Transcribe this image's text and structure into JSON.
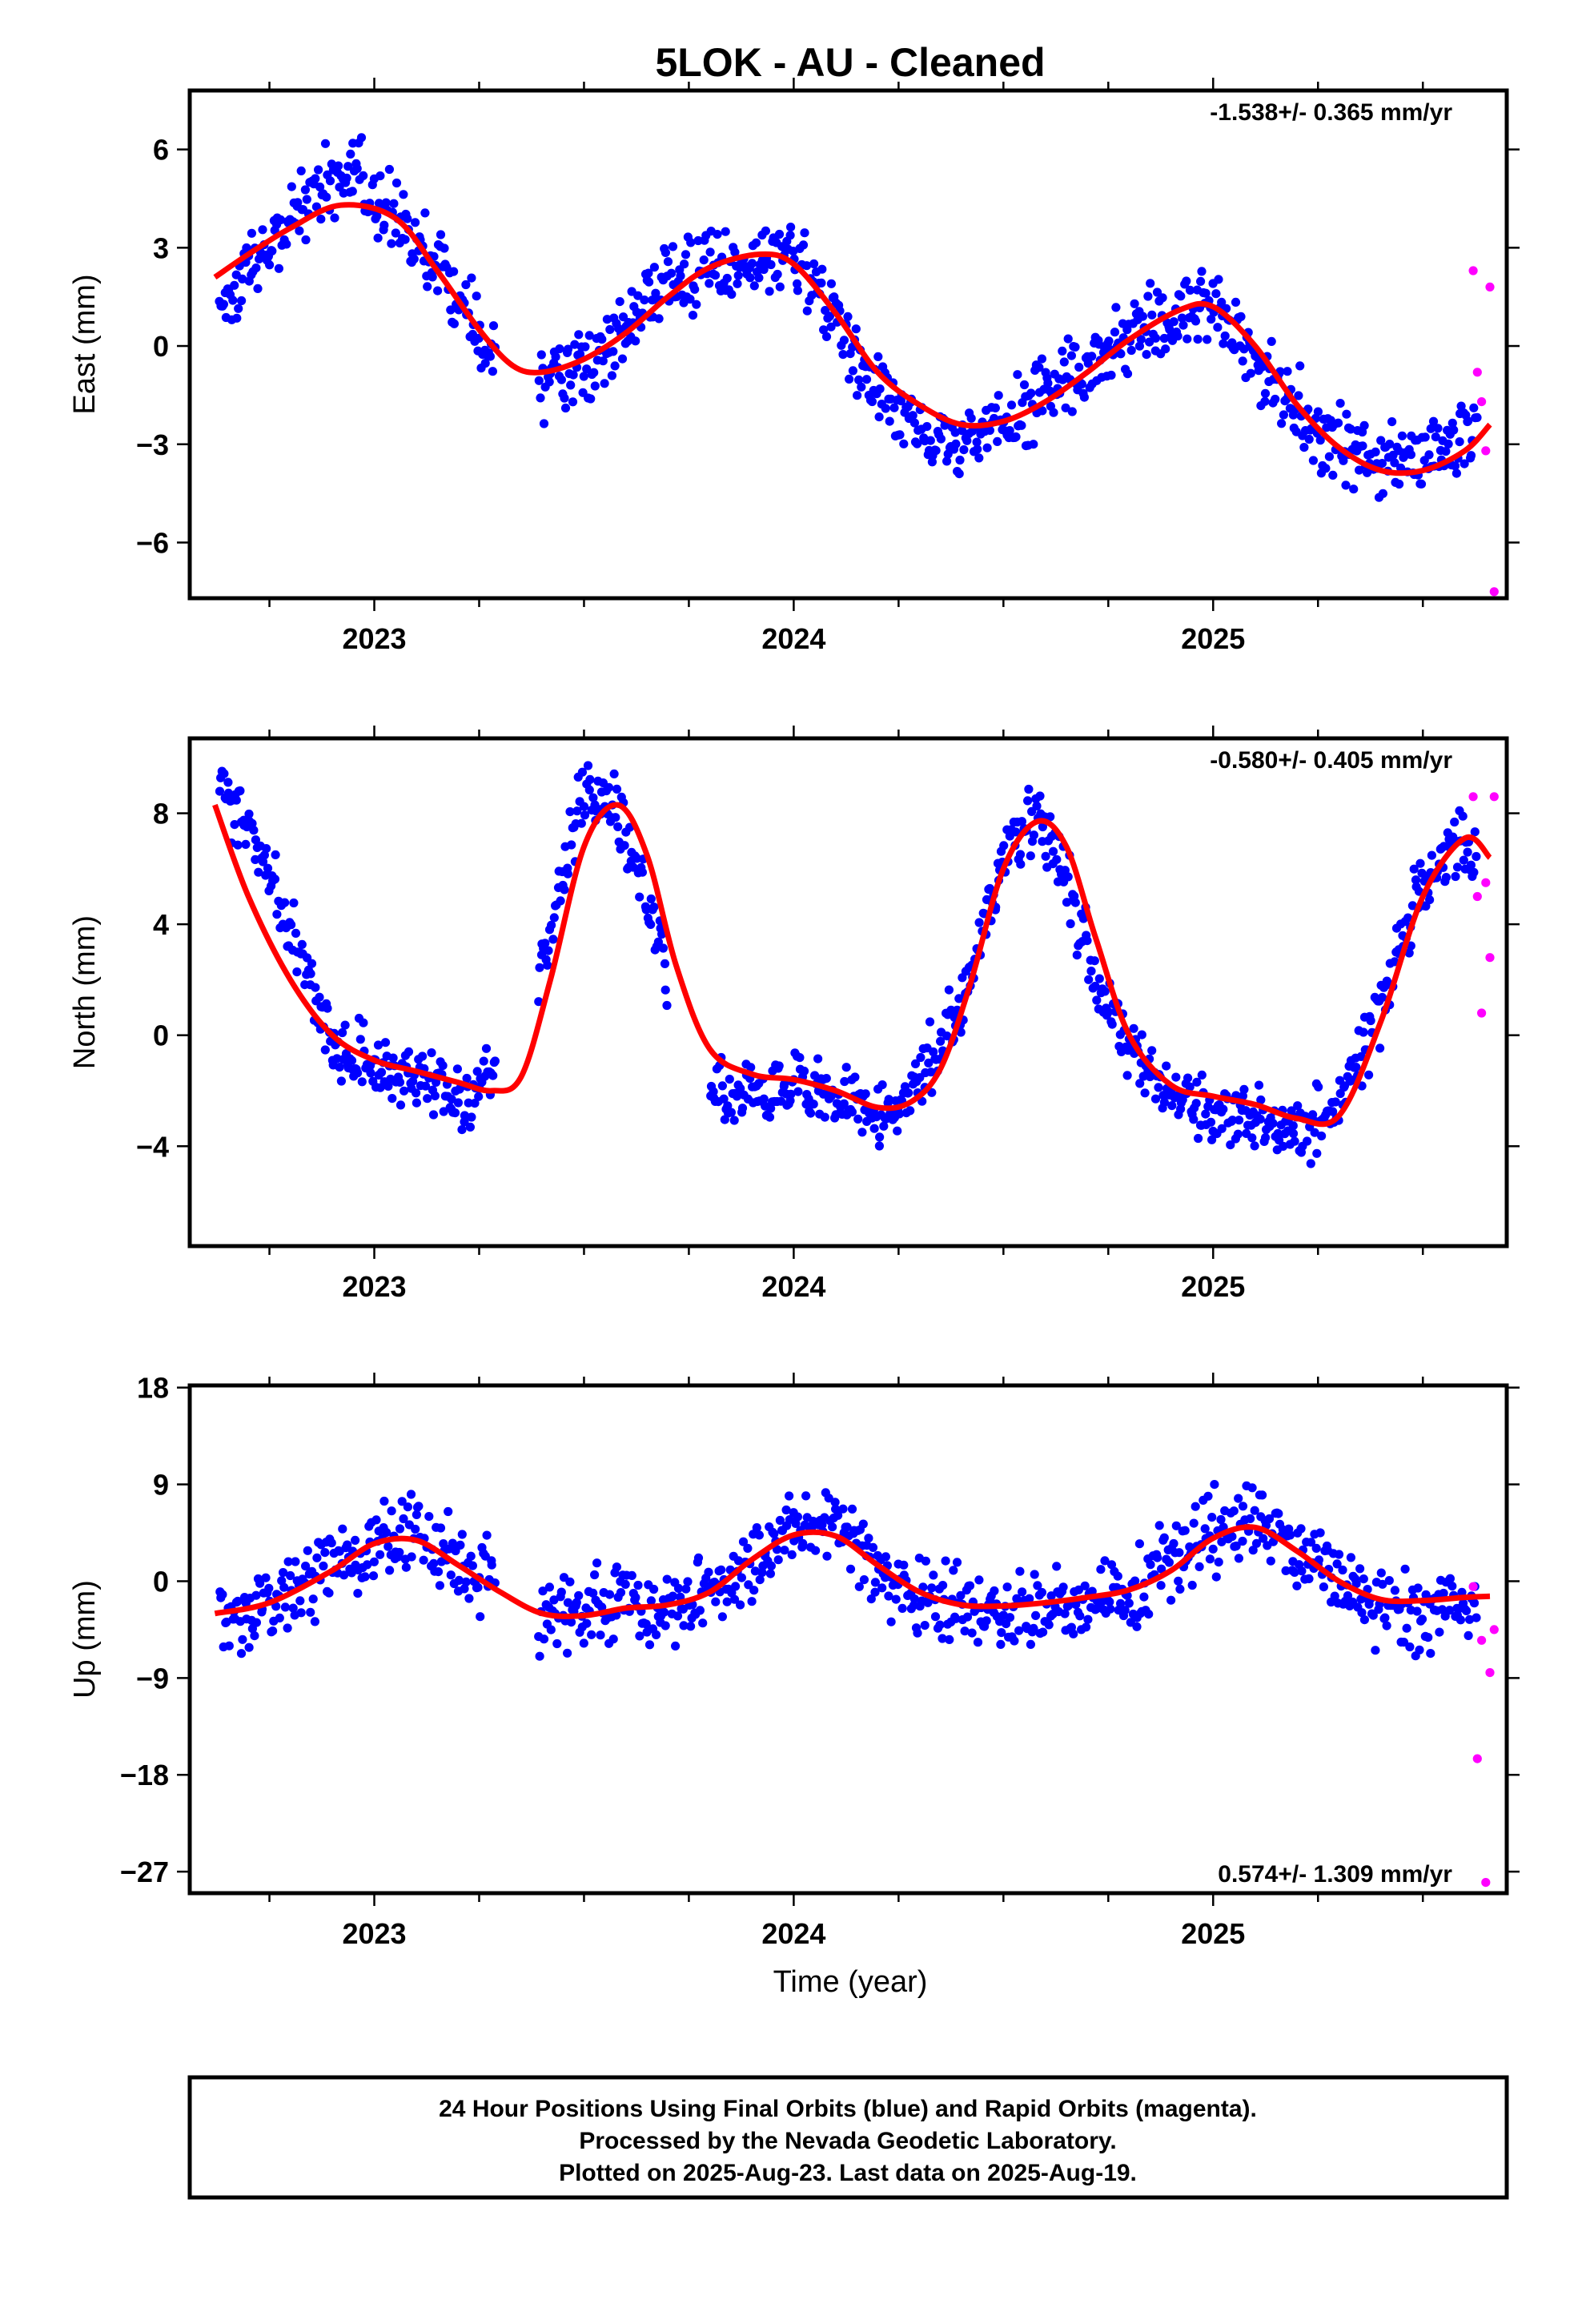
{
  "title": "5LOK  - AU - Cleaned",
  "xlabel": "Time (year)",
  "footer": {
    "line1": "24 Hour Positions Using Final Orbits (blue) and Rapid Orbits (magenta).",
    "line2": "Processed by the Nevada Geodetic Laboratory.",
    "line3": "Plotted on 2025-Aug-23. Last data on 2025-Aug-19."
  },
  "colors": {
    "final_orbits": "#0000ff",
    "rapid_orbits": "#ff00ff",
    "model_fit": "#ff0000"
  },
  "chart_data": [
    {
      "type": "scatter",
      "ylabel": "East (mm)",
      "rate_label": "-1.538+/- 0.365 mm/yr",
      "rate_position": "top-right",
      "xlim": [
        2022.56,
        2025.7
      ],
      "ylim": [
        -7.7,
        7.8
      ],
      "xticks": [
        2023,
        2024,
        2025
      ],
      "xtick_labels": [
        "2023",
        "2024",
        "2025"
      ],
      "yticks": [
        -6,
        -3,
        0,
        3,
        6
      ],
      "ytick_labels": [
        "−6",
        "−3",
        "0",
        "3",
        "6"
      ],
      "grid": false,
      "trend": {
        "x": [
          2022.62,
          2022.7,
          2022.8,
          2022.92,
          2023.05,
          2023.15,
          2023.25,
          2023.33,
          2023.4,
          2023.5,
          2023.6,
          2023.7,
          2023.8,
          2023.92,
          2024.0,
          2024.1,
          2024.2,
          2024.3,
          2024.4,
          2024.5,
          2024.6,
          2024.7,
          2024.8,
          2024.92,
          2025.0,
          2025.1,
          2025.2,
          2025.3,
          2025.4,
          2025.5,
          2025.6,
          2025.66
        ],
        "y": [
          2.1,
          2.8,
          3.6,
          4.3,
          3.9,
          2.3,
          0.5,
          -0.6,
          -0.8,
          -0.4,
          0.4,
          1.5,
          2.4,
          2.8,
          2.5,
          1.0,
          -0.8,
          -1.8,
          -2.4,
          -2.3,
          -1.7,
          -0.8,
          0.2,
          1.1,
          1.2,
          0.0,
          -1.8,
          -3.1,
          -3.8,
          -3.8,
          -3.2,
          -2.4
        ]
      },
      "final_orbits": {
        "anchors_x": [
          2022.62,
          2022.7,
          2022.8,
          2022.92,
          2023.05,
          2023.15,
          2023.25,
          2023.33,
          2023.4,
          2023.5,
          2023.6,
          2023.7,
          2023.8,
          2023.92,
          2024.0,
          2024.1,
          2024.2,
          2024.3,
          2024.4,
          2024.5,
          2024.6,
          2024.7,
          2024.8,
          2024.92,
          2025.0,
          2025.1,
          2025.2,
          2025.3,
          2025.4,
          2025.5,
          2025.6,
          2025.66
        ],
        "anchors_y": [
          1.0,
          2.5,
          3.8,
          5.5,
          4.0,
          2.5,
          0.2,
          -0.8,
          -1.0,
          -0.6,
          0.6,
          2.0,
          2.6,
          2.8,
          3.0,
          0.8,
          -1.2,
          -2.3,
          -3.0,
          -2.4,
          -1.2,
          -0.4,
          0.4,
          1.0,
          1.2,
          -0.3,
          -2.0,
          -3.0,
          -3.4,
          -3.3,
          -2.6,
          -2.1
        ],
        "segments": [
          [
            2022.63,
            2023.29
          ],
          [
            2023.39,
            2025.63
          ]
        ],
        "spread": 1.0,
        "count": 900
      },
      "rapid_orbits": {
        "x": [
          2025.62,
          2025.63,
          2025.64,
          2025.65,
          2025.66,
          2025.67
        ],
        "y": [
          2.3,
          -0.8,
          -1.7,
          -3.2,
          1.8,
          -7.5
        ]
      }
    },
    {
      "type": "scatter",
      "ylabel": "North (mm)",
      "rate_label": "-0.580+/- 0.405 mm/yr",
      "rate_position": "top-right",
      "xlim": [
        2022.56,
        2025.7
      ],
      "ylim": [
        -7.6,
        10.7
      ],
      "xticks": [
        2023,
        2024,
        2025
      ],
      "xtick_labels": [
        "2023",
        "2024",
        "2025"
      ],
      "yticks": [
        -4,
        0,
        4,
        8
      ],
      "ytick_labels": [
        "−4",
        "0",
        "4",
        "8"
      ],
      "grid": false,
      "trend": {
        "x": [
          2022.62,
          2022.7,
          2022.8,
          2022.9,
          2023.0,
          2023.1,
          2023.2,
          2023.28,
          2023.35,
          2023.42,
          2023.5,
          2023.58,
          2023.65,
          2023.72,
          2023.8,
          2023.9,
          2024.0,
          2024.1,
          2024.2,
          2024.28,
          2024.35,
          2024.42,
          2024.5,
          2024.58,
          2024.65,
          2024.72,
          2024.8,
          2024.9,
          2025.0,
          2025.1,
          2025.2,
          2025.3,
          2025.4,
          2025.5,
          2025.6,
          2025.66
        ],
        "y": [
          8.3,
          5.0,
          2.0,
          0.0,
          -0.9,
          -1.3,
          -1.7,
          -2.0,
          -1.5,
          2.0,
          6.8,
          8.3,
          6.5,
          2.5,
          -0.5,
          -1.4,
          -1.6,
          -2.0,
          -2.6,
          -2.4,
          -1.2,
          1.8,
          6.0,
          7.7,
          6.8,
          3.5,
          0.0,
          -1.8,
          -2.2,
          -2.5,
          -3.0,
          -2.9,
          0.5,
          5.0,
          7.1,
          6.4
        ]
      },
      "final_orbits": {
        "anchors_x": [
          2022.62,
          2022.7,
          2022.8,
          2022.9,
          2023.0,
          2023.1,
          2023.2,
          2023.28,
          2023.35,
          2023.42,
          2023.5,
          2023.58,
          2023.65,
          2023.72,
          2023.8,
          2023.9,
          2024.0,
          2024.1,
          2024.2,
          2024.28,
          2024.35,
          2024.42,
          2024.5,
          2024.58,
          2024.65,
          2024.72,
          2024.8,
          2024.9,
          2025.0,
          2025.1,
          2025.2,
          2025.3,
          2025.4,
          2025.5,
          2025.6,
          2025.66
        ],
        "anchors_y": [
          9.2,
          7.5,
          4.0,
          -0.5,
          -1.0,
          -1.6,
          -2.4,
          -1.5,
          1.0,
          3.5,
          9.0,
          8.0,
          5.0,
          1.0,
          -2.0,
          -2.2,
          -1.8,
          -2.2,
          -2.8,
          -2.0,
          -0.5,
          2.0,
          6.5,
          7.8,
          5.5,
          2.0,
          -0.5,
          -2.0,
          -2.8,
          -3.0,
          -3.6,
          -2.5,
          1.0,
          5.5,
          6.8,
          6.5
        ],
        "segments": [
          [
            2022.63,
            2023.29
          ],
          [
            2023.39,
            2023.7
          ],
          [
            2023.8,
            2025.63
          ]
        ],
        "spread": 1.0,
        "count": 900
      },
      "rapid_orbits": {
        "x": [
          2025.62,
          2025.63,
          2025.64,
          2025.65,
          2025.66,
          2025.67
        ],
        "y": [
          8.6,
          5.0,
          0.8,
          5.5,
          2.8,
          8.6
        ]
      }
    },
    {
      "type": "scatter",
      "ylabel": "Up (mm)",
      "rate_label": "0.574+/- 1.309 mm/yr",
      "rate_position": "bottom-right",
      "xlim": [
        2022.56,
        2025.7
      ],
      "ylim": [
        -29,
        18.2
      ],
      "xticks": [
        2023,
        2024,
        2025
      ],
      "xtick_labels": [
        "2023",
        "2024",
        "2025"
      ],
      "yticks": [
        -27,
        -18,
        -9,
        0,
        9,
        18
      ],
      "ytick_labels": [
        "−27",
        "−18",
        "−9",
        "0",
        "9",
        "18"
      ],
      "grid": false,
      "trend": {
        "x": [
          2022.62,
          2022.75,
          2022.9,
          2023.0,
          2023.1,
          2023.2,
          2023.3,
          2023.4,
          2023.5,
          2023.6,
          2023.7,
          2023.8,
          2023.9,
          2024.0,
          2024.1,
          2024.2,
          2024.3,
          2024.4,
          2024.5,
          2024.6,
          2024.7,
          2024.8,
          2024.9,
          2025.0,
          2025.1,
          2025.2,
          2025.3,
          2025.4,
          2025.5,
          2025.6,
          2025.66
        ],
        "y": [
          -3.0,
          -2.0,
          1.0,
          3.5,
          3.8,
          1.5,
          -1.0,
          -3.0,
          -3.2,
          -2.5,
          -2.2,
          -1.0,
          2.0,
          4.3,
          4.2,
          1.5,
          -1.0,
          -2.2,
          -2.3,
          -2.0,
          -1.5,
          -0.8,
          1.0,
          4.0,
          5.0,
          2.8,
          0.0,
          -1.7,
          -1.8,
          -1.5,
          -1.4
        ]
      },
      "final_orbits": {
        "anchors_x": [
          2022.62,
          2022.75,
          2022.9,
          2023.0,
          2023.1,
          2023.2,
          2023.3,
          2023.4,
          2023.5,
          2023.6,
          2023.7,
          2023.8,
          2023.9,
          2024.0,
          2024.1,
          2024.2,
          2024.3,
          2024.4,
          2024.5,
          2024.6,
          2024.7,
          2024.8,
          2024.9,
          2025.0,
          2025.1,
          2025.2,
          2025.3,
          2025.4,
          2025.5,
          2025.6,
          2025.66
        ],
        "anchors_y": [
          -3.0,
          -2.0,
          1.0,
          3.5,
          4.5,
          2.0,
          -1.0,
          -3.0,
          -3.0,
          -2.0,
          -2.5,
          -1.0,
          2.0,
          5.0,
          4.5,
          1.5,
          -1.5,
          -2.5,
          -2.5,
          -2.5,
          -2.0,
          -1.0,
          2.0,
          5.0,
          6.0,
          3.0,
          0.0,
          -3.0,
          -3.5,
          -1.5,
          -2.0
        ],
        "segments": [
          [
            2022.63,
            2023.29
          ],
          [
            2023.39,
            2025.63
          ]
        ],
        "spread": 3.2,
        "count": 850
      },
      "rapid_orbits": {
        "x": [
          2025.62,
          2025.63,
          2025.64,
          2025.65,
          2025.66,
          2025.67
        ],
        "y": [
          -0.5,
          -16.5,
          -5.5,
          -28.0,
          -8.5,
          -4.5
        ]
      }
    }
  ]
}
